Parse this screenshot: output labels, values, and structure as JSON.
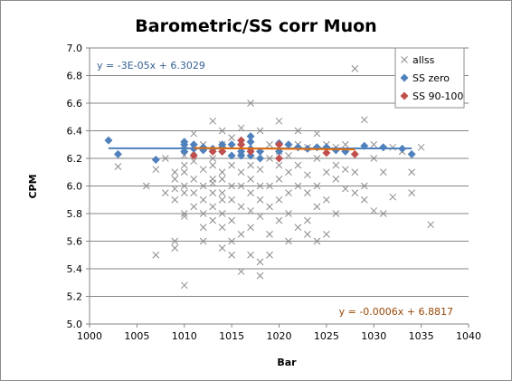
{
  "chart_data": {
    "type": "scatter",
    "title": "Barometric/SS corr Muon",
    "xlabel": "Bar",
    "ylabel": "CPM",
    "xlim": [
      1000,
      1040
    ],
    "ylim": [
      5.0,
      7.0
    ],
    "x_ticks": [
      "1000",
      "1005",
      "1010",
      "1015",
      "1020",
      "1025",
      "1030",
      "1035",
      "1040"
    ],
    "y_ticks": [
      "5.0",
      "5.2",
      "5.4",
      "5.6",
      "5.8",
      "6.0",
      "6.2",
      "6.4",
      "6.6",
      "6.8",
      "7.0"
    ],
    "grid": true,
    "legend_position": "top-right",
    "series": [
      {
        "name": "allss",
        "marker": "x",
        "color": "#8c8c8c",
        "points": [
          [
            1003,
            6.14
          ],
          [
            1006,
            6.0
          ],
          [
            1007,
            5.5
          ],
          [
            1007,
            6.12
          ],
          [
            1008,
            5.95
          ],
          [
            1008,
            6.2
          ],
          [
            1009,
            5.6
          ],
          [
            1009,
            5.55
          ],
          [
            1009,
            5.9
          ],
          [
            1009,
            6.05
          ],
          [
            1009,
            5.98
          ],
          [
            1009,
            6.1
          ],
          [
            1010,
            5.78
          ],
          [
            1010,
            5.8
          ],
          [
            1010,
            5.95
          ],
          [
            1010,
            6.1
          ],
          [
            1010,
            6.22
          ],
          [
            1010,
            6.3
          ],
          [
            1010,
            6.0
          ],
          [
            1010,
            5.28
          ],
          [
            1010,
            6.15
          ],
          [
            1011,
            5.85
          ],
          [
            1011,
            6.05
          ],
          [
            1011,
            6.25
          ],
          [
            1011,
            6.38
          ],
          [
            1011,
            5.95
          ],
          [
            1011,
            6.18
          ],
          [
            1012,
            5.6
          ],
          [
            1012,
            5.7
          ],
          [
            1012,
            5.9
          ],
          [
            1012,
            6.0
          ],
          [
            1012,
            6.12
          ],
          [
            1012,
            6.3
          ],
          [
            1012,
            5.8
          ],
          [
            1013,
            5.75
          ],
          [
            1013,
            5.85
          ],
          [
            1013,
            6.05
          ],
          [
            1013,
            6.15
          ],
          [
            1013,
            6.2
          ],
          [
            1013,
            6.47
          ],
          [
            1013,
            5.95
          ],
          [
            1013,
            6.02
          ],
          [
            1014,
            5.55
          ],
          [
            1014,
            5.7
          ],
          [
            1014,
            5.8
          ],
          [
            1014,
            5.95
          ],
          [
            1014,
            6.1
          ],
          [
            1014,
            6.3
          ],
          [
            1014,
            6.4
          ],
          [
            1014,
            6.05
          ],
          [
            1014,
            5.9
          ],
          [
            1015,
            5.5
          ],
          [
            1015,
            5.6
          ],
          [
            1015,
            5.9
          ],
          [
            1015,
            6.0
          ],
          [
            1015,
            6.15
          ],
          [
            1015,
            6.35
          ],
          [
            1015,
            5.75
          ],
          [
            1016,
            5.38
          ],
          [
            1016,
            5.65
          ],
          [
            1016,
            5.85
          ],
          [
            1016,
            6.1
          ],
          [
            1016,
            6.25
          ],
          [
            1016,
            6.42
          ],
          [
            1016,
            6.0
          ],
          [
            1017,
            5.5
          ],
          [
            1017,
            5.7
          ],
          [
            1017,
            5.82
          ],
          [
            1017,
            5.95
          ],
          [
            1017,
            6.05
          ],
          [
            1017,
            6.6
          ],
          [
            1017,
            6.15
          ],
          [
            1018,
            5.35
          ],
          [
            1018,
            5.45
          ],
          [
            1018,
            5.78
          ],
          [
            1018,
            5.9
          ],
          [
            1018,
            6.0
          ],
          [
            1018,
            6.12
          ],
          [
            1018,
            6.4
          ],
          [
            1019,
            5.5
          ],
          [
            1019,
            5.65
          ],
          [
            1019,
            5.85
          ],
          [
            1019,
            6.0
          ],
          [
            1019,
            6.2
          ],
          [
            1019,
            6.3
          ],
          [
            1020,
            5.75
          ],
          [
            1020,
            5.9
          ],
          [
            1020,
            6.05
          ],
          [
            1020,
            6.15
          ],
          [
            1020,
            6.47
          ],
          [
            1020,
            6.25
          ],
          [
            1021,
            5.6
          ],
          [
            1021,
            5.8
          ],
          [
            1021,
            5.95
          ],
          [
            1021,
            6.1
          ],
          [
            1021,
            6.22
          ],
          [
            1022,
            5.7
          ],
          [
            1022,
            6.0
          ],
          [
            1022,
            6.15
          ],
          [
            1022,
            6.4
          ],
          [
            1022,
            6.3
          ],
          [
            1023,
            5.65
          ],
          [
            1023,
            5.75
          ],
          [
            1023,
            5.95
          ],
          [
            1023,
            6.08
          ],
          [
            1023,
            6.28
          ],
          [
            1024,
            5.6
          ],
          [
            1024,
            5.85
          ],
          [
            1024,
            6.0
          ],
          [
            1024,
            6.38
          ],
          [
            1024,
            6.2
          ],
          [
            1025,
            5.65
          ],
          [
            1025,
            5.9
          ],
          [
            1025,
            6.1
          ],
          [
            1025,
            6.3
          ],
          [
            1026,
            5.8
          ],
          [
            1026,
            6.05
          ],
          [
            1026,
            6.28
          ],
          [
            1026,
            6.15
          ],
          [
            1027,
            5.98
          ],
          [
            1027,
            6.12
          ],
          [
            1027,
            6.3
          ],
          [
            1028,
            5.95
          ],
          [
            1028,
            6.85
          ],
          [
            1028,
            6.1
          ],
          [
            1029,
            6.0
          ],
          [
            1029,
            6.48
          ],
          [
            1029,
            5.9
          ],
          [
            1030,
            5.82
          ],
          [
            1030,
            6.3
          ],
          [
            1030,
            6.2
          ],
          [
            1031,
            5.8
          ],
          [
            1031,
            6.1
          ],
          [
            1032,
            5.92
          ],
          [
            1032,
            6.28
          ],
          [
            1033,
            6.25
          ],
          [
            1034,
            6.1
          ],
          [
            1034,
            5.95
          ],
          [
            1035,
            6.28
          ],
          [
            1036,
            5.72
          ]
        ]
      },
      {
        "name": "SS zero",
        "marker": "diamond",
        "color": "#4f81bd",
        "points": [
          [
            1002,
            6.33
          ],
          [
            1003,
            6.23
          ],
          [
            1007,
            6.19
          ],
          [
            1010,
            6.25
          ],
          [
            1010,
            6.3
          ],
          [
            1010,
            6.32
          ],
          [
            1011,
            6.27
          ],
          [
            1011,
            6.3
          ],
          [
            1012,
            6.26
          ],
          [
            1012,
            6.28
          ],
          [
            1013,
            6.27
          ],
          [
            1014,
            6.25
          ],
          [
            1014,
            6.28
          ],
          [
            1014,
            6.3
          ],
          [
            1015,
            6.22
          ],
          [
            1015,
            6.3
          ],
          [
            1016,
            6.25
          ],
          [
            1016,
            6.3
          ],
          [
            1016,
            6.22
          ],
          [
            1017,
            6.22
          ],
          [
            1017,
            6.27
          ],
          [
            1017,
            6.32
          ],
          [
            1017,
            6.36
          ],
          [
            1018,
            6.2
          ],
          [
            1018,
            6.25
          ],
          [
            1020,
            6.25
          ],
          [
            1020,
            6.31
          ],
          [
            1021,
            6.3
          ],
          [
            1022,
            6.28
          ],
          [
            1023,
            6.27
          ],
          [
            1024,
            6.28
          ],
          [
            1025,
            6.28
          ],
          [
            1026,
            6.26
          ],
          [
            1027,
            6.25
          ],
          [
            1029,
            6.29
          ],
          [
            1031,
            6.28
          ],
          [
            1033,
            6.27
          ],
          [
            1034,
            6.23
          ]
        ]
      },
      {
        "name": "SS 90-100",
        "marker": "diamond",
        "color": "#c0504d",
        "points": [
          [
            1011,
            6.22
          ],
          [
            1013,
            6.25
          ],
          [
            1014,
            6.25
          ],
          [
            1016,
            6.3
          ],
          [
            1016,
            6.33
          ],
          [
            1017,
            6.25
          ],
          [
            1020,
            6.3
          ],
          [
            1020,
            6.2
          ],
          [
            1025,
            6.24
          ],
          [
            1028,
            6.23
          ]
        ]
      }
    ],
    "trendlines": [
      {
        "series": "SS zero",
        "equation": "y = -3E-05x + 6.3029",
        "slope": -3e-05,
        "intercept": 6.3029,
        "x_range": [
          1002,
          1034
        ],
        "color": "#4f81bd"
      },
      {
        "series": "SS 90-100",
        "equation": "y = -0.0006x + 6.8817",
        "slope": -0.0006,
        "intercept": 6.8817,
        "x_range": [
          1011,
          1028
        ],
        "color": "#e46c0a"
      }
    ]
  }
}
